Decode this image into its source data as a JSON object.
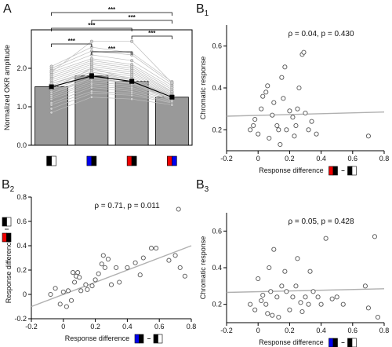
{
  "chart_data": [
    {
      "panel": "A",
      "type": "bar",
      "ylabel": "Normalized OKR amplitude",
      "ylim": [
        0,
        3.0
      ],
      "yticks": [
        0,
        1.0,
        2.0
      ],
      "categories": [
        "white/black",
        "blue/black",
        "red/black",
        "red/blue"
      ],
      "values": [
        1.52,
        1.8,
        1.66,
        1.25
      ],
      "bar_color": "#999999",
      "stimulus_colors": [
        [
          "#000000",
          "#ffffff"
        ],
        [
          "#0000ee",
          "#000000"
        ],
        [
          "#ee0000",
          "#000000"
        ],
        [
          "#ee0000",
          "#0000ee"
        ]
      ],
      "significance": [
        {
          "from": 0,
          "to": 3,
          "label": "***"
        },
        {
          "from": 1,
          "to": 3,
          "label": "***"
        },
        {
          "from": 0,
          "to": 2,
          "label": "***"
        },
        {
          "from": 2,
          "to": 3,
          "label": "***"
        },
        {
          "from": 0,
          "to": 1,
          "label": "***"
        },
        {
          "from": 1,
          "to": 2,
          "label": "***"
        }
      ],
      "individual_lines": [
        [
          0.85,
          1.25,
          1.2,
          1.05
        ],
        [
          0.95,
          1.35,
          1.3,
          1.1
        ],
        [
          1.05,
          1.4,
          1.35,
          1.12
        ],
        [
          1.1,
          1.5,
          1.4,
          1.15
        ],
        [
          1.2,
          1.55,
          1.45,
          1.18
        ],
        [
          1.25,
          1.6,
          1.5,
          1.2
        ],
        [
          1.3,
          1.65,
          1.55,
          1.22
        ],
        [
          1.35,
          1.7,
          1.6,
          1.22
        ],
        [
          1.4,
          1.75,
          1.62,
          1.25
        ],
        [
          1.45,
          1.8,
          1.65,
          1.25
        ],
        [
          1.5,
          1.85,
          1.7,
          1.28
        ],
        [
          1.55,
          1.9,
          1.75,
          1.28
        ],
        [
          1.6,
          1.95,
          1.8,
          1.3
        ],
        [
          1.65,
          2.0,
          1.85,
          1.32
        ],
        [
          1.7,
          2.05,
          1.9,
          1.35
        ],
        [
          1.75,
          2.1,
          1.95,
          1.38
        ],
        [
          1.8,
          2.15,
          2.0,
          1.4
        ],
        [
          1.85,
          2.2,
          2.05,
          1.45
        ],
        [
          1.9,
          2.25,
          2.1,
          1.5
        ],
        [
          1.95,
          2.35,
          2.2,
          1.55
        ],
        [
          2.0,
          2.45,
          2.35,
          1.6
        ],
        [
          2.05,
          2.55,
          2.4,
          1.65
        ],
        [
          1.9,
          2.7,
          2.7,
          1.62
        ],
        [
          1.45,
          2.0,
          1.7,
          1.15
        ],
        [
          1.35,
          1.75,
          1.6,
          1.2
        ],
        [
          1.6,
          1.9,
          1.7,
          1.25
        ]
      ],
      "errors": [
        0.05,
        0.06,
        0.05,
        0.04
      ]
    },
    {
      "panel": "B1",
      "type": "scatter",
      "xlabel": "Response difference",
      "ylabel": "Chromatic response",
      "xlim": [
        -0.2,
        0.8
      ],
      "ylim": [
        0.1,
        0.7
      ],
      "xticks": [
        -0.2,
        0,
        0.2,
        0.4,
        0.6,
        0.8
      ],
      "yticks": [
        0.2,
        0.4,
        0.6
      ],
      "annotation": "ρ = 0.04, p = 0.430",
      "xlabel_stimuli": [
        [
          "#ee0000",
          "#000000"
        ],
        [
          "#000000",
          "#ffffff"
        ]
      ],
      "fit": {
        "x": [
          -0.2,
          0.8
        ],
        "y": [
          0.265,
          0.285
        ]
      },
      "points": [
        [
          -0.05,
          0.2
        ],
        [
          -0.03,
          0.22
        ],
        [
          -0.02,
          0.25
        ],
        [
          0.0,
          0.18
        ],
        [
          0.02,
          0.3
        ],
        [
          0.03,
          0.36
        ],
        [
          0.05,
          0.38
        ],
        [
          0.06,
          0.41
        ],
        [
          0.07,
          0.16
        ],
        [
          0.09,
          0.27
        ],
        [
          0.1,
          0.33
        ],
        [
          0.12,
          0.22
        ],
        [
          0.13,
          0.2
        ],
        [
          0.14,
          0.13
        ],
        [
          0.15,
          0.45
        ],
        [
          0.16,
          0.35
        ],
        [
          0.17,
          0.5
        ],
        [
          0.18,
          0.2
        ],
        [
          0.2,
          0.29
        ],
        [
          0.22,
          0.26
        ],
        [
          0.23,
          0.17
        ],
        [
          0.24,
          0.22
        ],
        [
          0.25,
          0.3
        ],
        [
          0.26,
          0.4
        ],
        [
          0.28,
          0.56
        ],
        [
          0.29,
          0.57
        ],
        [
          0.3,
          0.28
        ],
        [
          0.32,
          0.2
        ],
        [
          0.34,
          0.24
        ],
        [
          0.37,
          0.18
        ],
        [
          0.7,
          0.17
        ]
      ]
    },
    {
      "panel": "B2",
      "type": "scatter",
      "xlabel": "Response difference",
      "ylabel": "Response difference",
      "xlim": [
        -0.2,
        0.8
      ],
      "ylim": [
        -0.2,
        0.8
      ],
      "xticks": [
        -0.2,
        0,
        0.2,
        0.4,
        0.6,
        0.8
      ],
      "yticks": [
        -0.2,
        0,
        0.2,
        0.4,
        0.6,
        0.8
      ],
      "annotation": "ρ = 0.71, p = 0.011",
      "xlabel_stimuli": [
        [
          "#0000ee",
          "#000000"
        ],
        [
          "#000000",
          "#ffffff"
        ]
      ],
      "ylabel_stimuli": [
        [
          "#000000",
          "#ffffff"
        ],
        [
          "#ee0000",
          "#000000"
        ]
      ],
      "fit": {
        "x": [
          -0.2,
          0.8
        ],
        "y": [
          -0.1,
          0.4
        ]
      },
      "points": [
        [
          -0.08,
          0.0
        ],
        [
          -0.05,
          0.05
        ],
        [
          -0.02,
          -0.08
        ],
        [
          0.0,
          0.02
        ],
        [
          0.02,
          -0.1
        ],
        [
          0.03,
          0.03
        ],
        [
          0.05,
          -0.05
        ],
        [
          0.06,
          0.18
        ],
        [
          0.07,
          0.1
        ],
        [
          0.08,
          0.15
        ],
        [
          0.09,
          0.18
        ],
        [
          0.1,
          0.14
        ],
        [
          0.11,
          0.03
        ],
        [
          0.14,
          0.08
        ],
        [
          0.15,
          0.04
        ],
        [
          0.18,
          0.07
        ],
        [
          0.2,
          0.12
        ],
        [
          0.22,
          0.17
        ],
        [
          0.24,
          0.25
        ],
        [
          0.25,
          0.32
        ],
        [
          0.26,
          0.22
        ],
        [
          0.28,
          0.29
        ],
        [
          0.3,
          0.08
        ],
        [
          0.33,
          0.22
        ],
        [
          0.35,
          0.1
        ],
        [
          0.4,
          0.22
        ],
        [
          0.45,
          0.26
        ],
        [
          0.48,
          0.16
        ],
        [
          0.5,
          0.3
        ],
        [
          0.55,
          0.38
        ],
        [
          0.58,
          0.38
        ],
        [
          0.66,
          0.28
        ],
        [
          0.7,
          0.32
        ],
        [
          0.72,
          0.7
        ],
        [
          0.73,
          0.22
        ],
        [
          0.76,
          0.15
        ]
      ]
    },
    {
      "panel": "B3",
      "type": "scatter",
      "xlabel": "Response difference",
      "ylabel": "Chromatic response",
      "xlim": [
        -0.2,
        0.8
      ],
      "ylim": [
        0.1,
        0.7
      ],
      "xticks": [
        -0.2,
        0,
        0.2,
        0.4,
        0.6,
        0.8
      ],
      "yticks": [
        0.2,
        0.4,
        0.6
      ],
      "annotation": "ρ = 0.05, p = 0.428",
      "xlabel_stimuli": [
        [
          "#0000ee",
          "#000000"
        ],
        [
          "#000000",
          "#ffffff"
        ]
      ],
      "fit": {
        "x": [
          -0.2,
          0.8
        ],
        "y": [
          0.265,
          0.285
        ]
      },
      "points": [
        [
          -0.05,
          0.2
        ],
        [
          -0.02,
          0.17
        ],
        [
          0.0,
          0.34
        ],
        [
          0.02,
          0.22
        ],
        [
          0.03,
          0.25
        ],
        [
          0.05,
          0.2
        ],
        [
          0.06,
          0.15
        ],
        [
          0.07,
          0.4
        ],
        [
          0.08,
          0.27
        ],
        [
          0.09,
          0.14
        ],
        [
          0.1,
          0.5
        ],
        [
          0.12,
          0.24
        ],
        [
          0.13,
          0.13
        ],
        [
          0.15,
          0.3
        ],
        [
          0.17,
          0.38
        ],
        [
          0.18,
          0.27
        ],
        [
          0.2,
          0.17
        ],
        [
          0.22,
          0.24
        ],
        [
          0.24,
          0.3
        ],
        [
          0.25,
          0.45
        ],
        [
          0.27,
          0.21
        ],
        [
          0.28,
          0.16
        ],
        [
          0.3,
          0.24
        ],
        [
          0.32,
          0.2
        ],
        [
          0.33,
          0.38
        ],
        [
          0.35,
          0.27
        ],
        [
          0.38,
          0.24
        ],
        [
          0.4,
          0.2
        ],
        [
          0.43,
          0.56
        ],
        [
          0.47,
          0.23
        ],
        [
          0.5,
          0.24
        ],
        [
          0.54,
          0.2
        ],
        [
          0.68,
          0.3
        ],
        [
          0.7,
          0.18
        ],
        [
          0.74,
          0.57
        ],
        [
          0.76,
          0.13
        ]
      ]
    }
  ]
}
